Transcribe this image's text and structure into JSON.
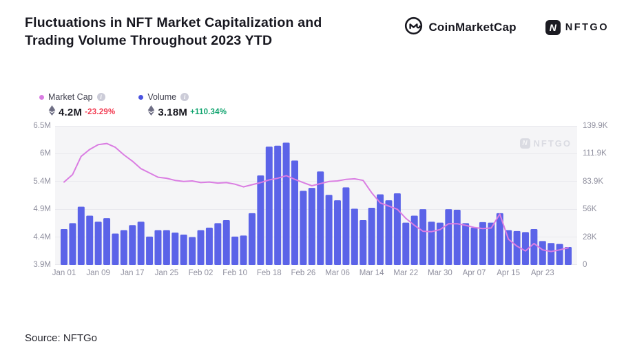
{
  "header": {
    "title_line1": "Fluctuations in NFT Market Capitalization and",
    "title_line2": "Trading Volume Throughout 2023 YTD",
    "coinmarketcap_label": "CoinMarketCap",
    "nftgo_label": "NFTGO",
    "nftgo_icon_letter": "N"
  },
  "legend": {
    "market_cap": {
      "label": "Market Cap",
      "value": "4.2M",
      "change": "-23.29%",
      "dot_color": "#d97ce2",
      "change_color": "#f23c52"
    },
    "volume": {
      "label": "Volume",
      "value": "3.18M",
      "change": "+110.34%",
      "dot_color": "#4b53e0",
      "change_color": "#0fa36e"
    }
  },
  "watermark": {
    "label": "NFTGO",
    "icon_letter": "N"
  },
  "footer": {
    "source": "Source: NFTGo"
  },
  "chart_data": {
    "type": "bar",
    "subtype": "dual-axis combo: volume bars (right axis, K) + market cap line (left axis, M ETH)",
    "title": "Fluctuations in NFT Market Capitalization and Trading Volume Throughout 2023 YTD",
    "xlabel": "",
    "ylabel_left": "Market Cap (M)",
    "ylabel_right": "Volume (K)",
    "grid": true,
    "legend_position": "top-left",
    "plot_bg": "#f5f5f7",
    "grid_color": "#e9e9ee",
    "categories": [
      "Jan 01",
      "Jan 03",
      "Jan 05",
      "Jan 07",
      "Jan 09",
      "Jan 11",
      "Jan 13",
      "Jan 15",
      "Jan 17",
      "Jan 19",
      "Jan 21",
      "Jan 23",
      "Jan 25",
      "Jan 27",
      "Jan 29",
      "Jan 31",
      "Feb 02",
      "Feb 04",
      "Feb 06",
      "Feb 08",
      "Feb 10",
      "Feb 12",
      "Feb 14",
      "Feb 16",
      "Feb 18",
      "Feb 20",
      "Feb 22",
      "Feb 24",
      "Feb 26",
      "Feb 28",
      "Mar 02",
      "Mar 04",
      "Mar 06",
      "Mar 08",
      "Mar 10",
      "Mar 12",
      "Mar 14",
      "Mar 16",
      "Mar 18",
      "Mar 20",
      "Mar 22",
      "Mar 24",
      "Mar 26",
      "Mar 28",
      "Mar 30",
      "Apr 01",
      "Apr 03",
      "Apr 05",
      "Apr 07",
      "Apr 09",
      "Apr 11",
      "Apr 13",
      "Apr 15",
      "Apr 17",
      "Apr 19",
      "Apr 21",
      "Apr 23",
      "Apr 25",
      "Apr 27",
      "Apr 29"
    ],
    "series": [
      {
        "name": "Volume",
        "type": "bar",
        "axis": "right",
        "unit": "K",
        "color": "#5b63e8",
        "values": [
          36,
          42,
          58.5,
          49.5,
          43.5,
          47,
          31.5,
          35,
          40,
          43.5,
          28.5,
          35,
          35,
          32.5,
          30.5,
          28,
          35,
          37.5,
          42,
          45,
          28.5,
          29.5,
          52,
          90,
          119,
          120,
          123,
          105,
          74.5,
          77.5,
          94,
          70.5,
          65,
          78,
          56.5,
          45,
          57.5,
          71,
          65,
          72,
          42.5,
          49.5,
          56,
          43.5,
          42.5,
          56,
          55.5,
          42,
          37.5,
          43,
          42.5,
          52,
          35,
          34,
          33,
          36,
          24,
          22,
          21,
          18
        ]
      },
      {
        "name": "Market Cap",
        "type": "line",
        "axis": "left",
        "unit": "M",
        "color": "#da7de2",
        "values": [
          5.45,
          5.59,
          5.93,
          6.06,
          6.15,
          6.17,
          6.1,
          5.96,
          5.84,
          5.7,
          5.62,
          5.54,
          5.52,
          5.48,
          5.46,
          5.47,
          5.44,
          5.45,
          5.43,
          5.44,
          5.41,
          5.36,
          5.4,
          5.44,
          5.49,
          5.52,
          5.57,
          5.5,
          5.44,
          5.38,
          5.42,
          5.46,
          5.47,
          5.5,
          5.51,
          5.48,
          5.25,
          5.06,
          5.0,
          4.94,
          4.77,
          4.64,
          4.53,
          4.52,
          4.56,
          4.67,
          4.67,
          4.64,
          4.6,
          4.58,
          4.59,
          4.85,
          4.38,
          4.25,
          4.16,
          4.3,
          4.18,
          4.15,
          4.18,
          4.22
        ]
      }
    ],
    "left_axis": {
      "min": 3.9,
      "max": 6.5,
      "ticks": [
        "6.5M",
        "6M",
        "5.4M",
        "4.9M",
        "4.4M",
        "3.9M"
      ]
    },
    "right_axis": {
      "min": 0,
      "max": 139.9,
      "ticks": [
        "139.9K",
        "111.9K",
        "83.9K",
        "56K",
        "28K",
        "0"
      ]
    },
    "x_ticks": [
      "Jan 01",
      "Jan 09",
      "Jan 17",
      "Jan 25",
      "Feb 02",
      "Feb 10",
      "Feb 18",
      "Feb 26",
      "Mar 06",
      "Mar 14",
      "Mar 22",
      "Mar 30",
      "Apr 07",
      "Apr 15",
      "Apr 23"
    ]
  }
}
